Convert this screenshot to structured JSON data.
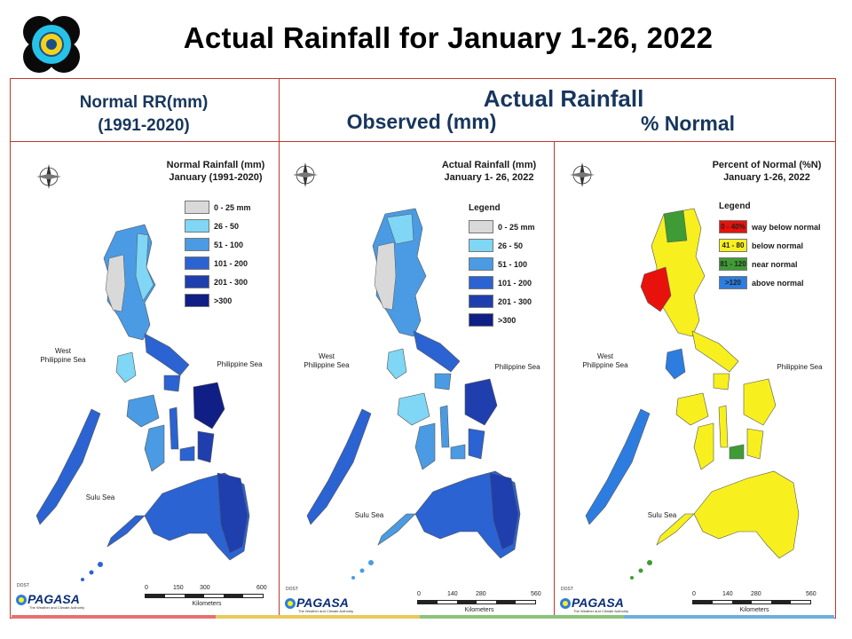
{
  "title": "Actual Rainfall for January 1-26, 2022",
  "headers": {
    "normal_line1": "Normal RR(mm)",
    "normal_line2": "(1991-2020)",
    "actual": "Actual Rainfall",
    "observed": "Observed (mm)",
    "percent": "% Normal"
  },
  "panels": {
    "normal": {
      "title_line1": "Normal Rainfall (mm)",
      "title_line2": "January (1991-2020)",
      "legend": [
        {
          "label": "0 - 25 mm",
          "color": "#d9d9d9"
        },
        {
          "label": "26 - 50",
          "color": "#7fd6f5"
        },
        {
          "label": "51 - 100",
          "color": "#4a9be3"
        },
        {
          "label": "101 - 200",
          "color": "#2b63d2"
        },
        {
          "label": "201 - 300",
          "color": "#1f3fae"
        },
        {
          "label": ">300",
          "color": "#0f1f85"
        }
      ],
      "scale_ticks": [
        "0",
        "150",
        "300",
        "600"
      ],
      "scale_unit": "Kilometers"
    },
    "observed": {
      "title_line1": "Actual Rainfall (mm)",
      "title_line2": "January 1- 26, 2022",
      "legend_title": "Legend",
      "legend": [
        {
          "label": "0 - 25 mm",
          "color": "#d9d9d9"
        },
        {
          "label": "26 - 50",
          "color": "#7fd6f5"
        },
        {
          "label": "51 - 100",
          "color": "#4a9be3"
        },
        {
          "label": "101 - 200",
          "color": "#2b63d2"
        },
        {
          "label": "201 - 300",
          "color": "#1f3fae"
        },
        {
          "label": ">300",
          "color": "#0f1f85"
        }
      ],
      "scale_ticks": [
        "0",
        "140",
        "280",
        "560"
      ],
      "scale_unit": "Kilometers"
    },
    "percent": {
      "title_line1": "Percent of Normal (%N)",
      "title_line2": "January 1-26, 2022",
      "legend_title": "Legend",
      "legend": [
        {
          "swatch": "0 - 40%",
          "label": "way below normal",
          "color": "#e8120c"
        },
        {
          "swatch": "41 - 80",
          "label": "below normal",
          "color": "#f7f01e"
        },
        {
          "swatch": "81 - 120",
          "label": "near normal",
          "color": "#3f9b35"
        },
        {
          "swatch": ">120",
          "label": "above normal",
          "color": "#2d7de0"
        }
      ],
      "scale_ticks": [
        "0",
        "140",
        "280",
        "560"
      ],
      "scale_unit": "Kilometers"
    }
  },
  "seas": {
    "west": "West\nPhilippine Sea",
    "east": "Philippine Sea",
    "sulu": "Sulu Sea"
  },
  "compass": {
    "n": "N",
    "s": "S",
    "e": "E",
    "w": "W"
  },
  "branding": {
    "small": "DOST",
    "wordmark": "PAGASA",
    "tagline": "The Weather and Climate Authority"
  }
}
